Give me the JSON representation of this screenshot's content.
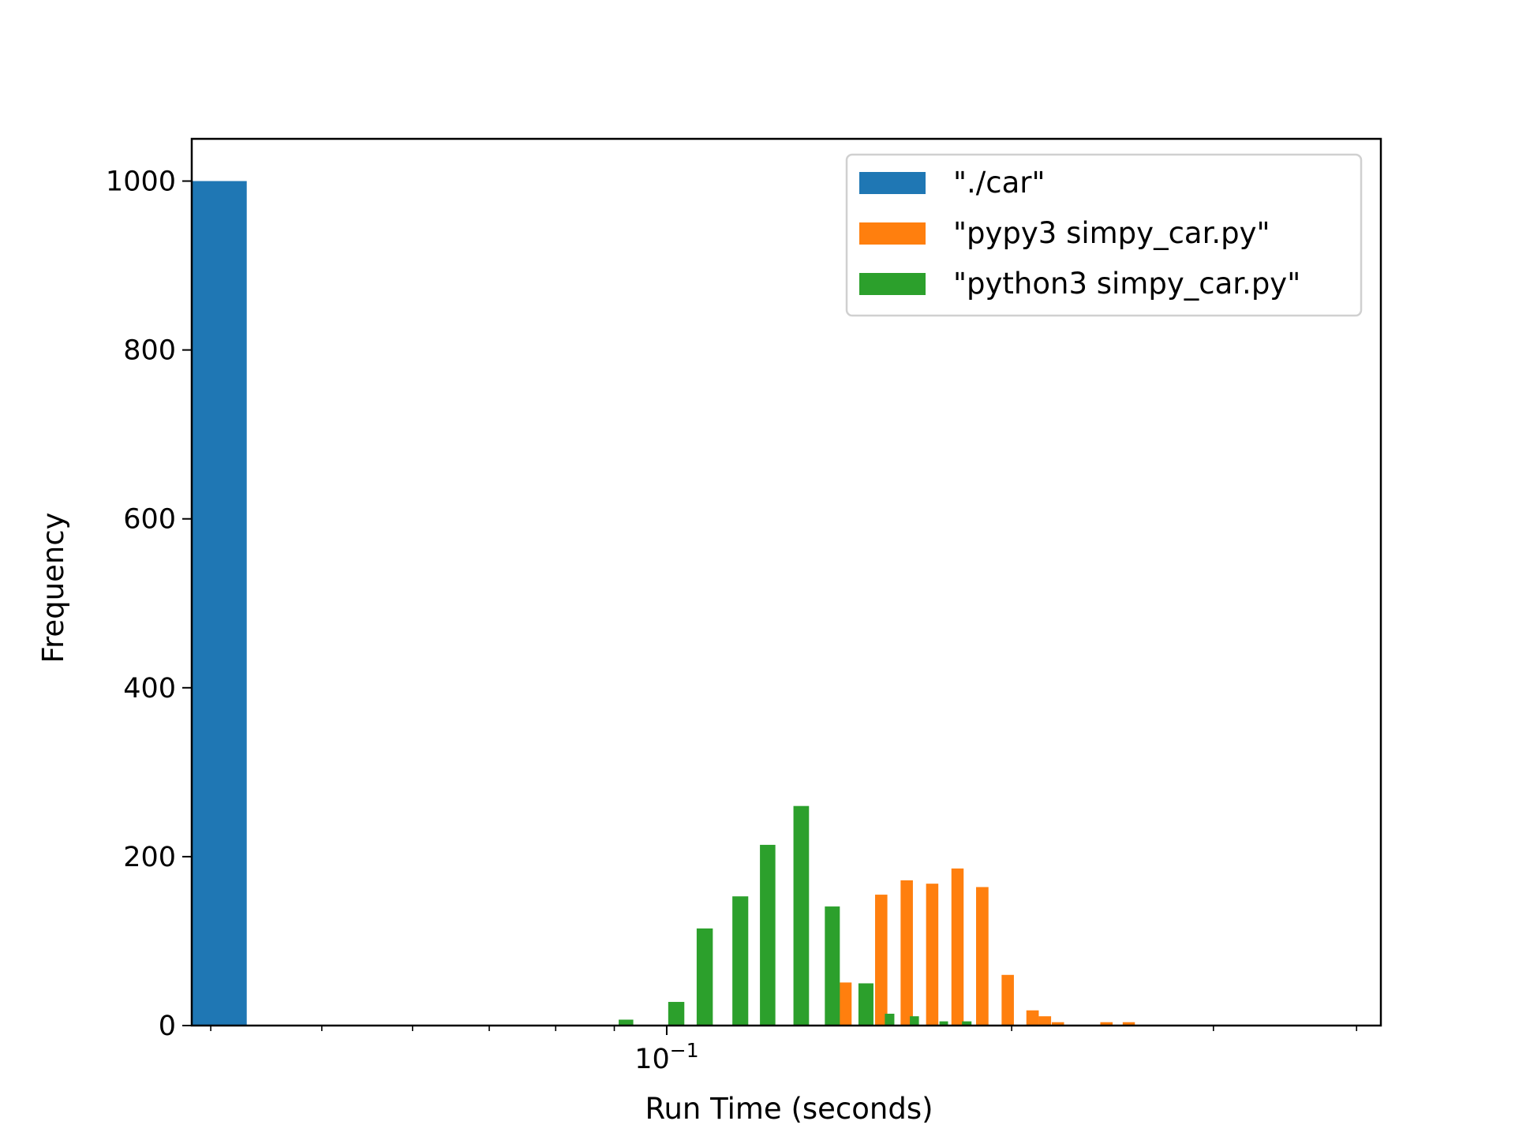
{
  "chart_data": {
    "type": "bar",
    "subtype": "histogram",
    "xscale": "log",
    "xlabel": "Run Time (seconds)",
    "ylabel": "Frequency",
    "xlim": [
      0.0385,
      0.42
    ],
    "ylim": [
      0,
      1050
    ],
    "yticks": [
      0,
      200,
      400,
      600,
      800,
      1000
    ],
    "xtick_major": {
      "value": 0.1,
      "label_base": "10",
      "label_exp": "−1"
    },
    "xtick_minor": [
      0.04,
      0.05,
      0.06,
      0.07,
      0.08,
      0.09,
      0.2,
      0.3,
      0.4
    ],
    "grid": false,
    "legend_position": "upper right",
    "series": [
      {
        "name": "\"./car\"",
        "color": "#1f77b4",
        "bars": [
          {
            "x0": 0.0385,
            "x1": 0.043,
            "value": 1000
          }
        ]
      },
      {
        "name": "\"pypy3 simpy_car.py\"",
        "color": "#ff7f0e",
        "bars": [
          {
            "x0": 0.138,
            "x1": 0.1415,
            "value": 3
          },
          {
            "x0": 0.1415,
            "x1": 0.145,
            "value": 51
          },
          {
            "x0": 0.152,
            "x1": 0.1558,
            "value": 155
          },
          {
            "x0": 0.16,
            "x1": 0.164,
            "value": 172
          },
          {
            "x0": 0.1684,
            "x1": 0.1726,
            "value": 168
          },
          {
            "x0": 0.1772,
            "x1": 0.1816,
            "value": 186
          },
          {
            "x0": 0.1862,
            "x1": 0.1909,
            "value": 164
          },
          {
            "x0": 0.196,
            "x1": 0.2009,
            "value": 60
          },
          {
            "x0": 0.206,
            "x1": 0.2112,
            "value": 18
          },
          {
            "x0": 0.2112,
            "x1": 0.2165,
            "value": 11
          },
          {
            "x0": 0.2168,
            "x1": 0.2222,
            "value": 4
          },
          {
            "x0": 0.239,
            "x1": 0.245,
            "value": 4
          },
          {
            "x0": 0.25,
            "x1": 0.2562,
            "value": 4
          }
        ]
      },
      {
        "name": "\"python3 simpy_car.py\"",
        "color": "#2ca02c",
        "bars": [
          {
            "x0": 0.0908,
            "x1": 0.0935,
            "value": 7
          },
          {
            "x0": 0.1003,
            "x1": 0.1036,
            "value": 28
          },
          {
            "x0": 0.1062,
            "x1": 0.1097,
            "value": 115
          },
          {
            "x0": 0.1141,
            "x1": 0.1178,
            "value": 153
          },
          {
            "x0": 0.1206,
            "x1": 0.1244,
            "value": 214
          },
          {
            "x0": 0.129,
            "x1": 0.1331,
            "value": 260
          },
          {
            "x0": 0.1374,
            "x1": 0.1416,
            "value": 141
          },
          {
            "x0": 0.147,
            "x1": 0.1515,
            "value": 50
          },
          {
            "x0": 0.155,
            "x1": 0.158,
            "value": 14
          },
          {
            "x0": 0.163,
            "x1": 0.166,
            "value": 11
          },
          {
            "x0": 0.173,
            "x1": 0.176,
            "value": 5
          },
          {
            "x0": 0.181,
            "x1": 0.1845,
            "value": 5
          }
        ]
      }
    ]
  }
}
